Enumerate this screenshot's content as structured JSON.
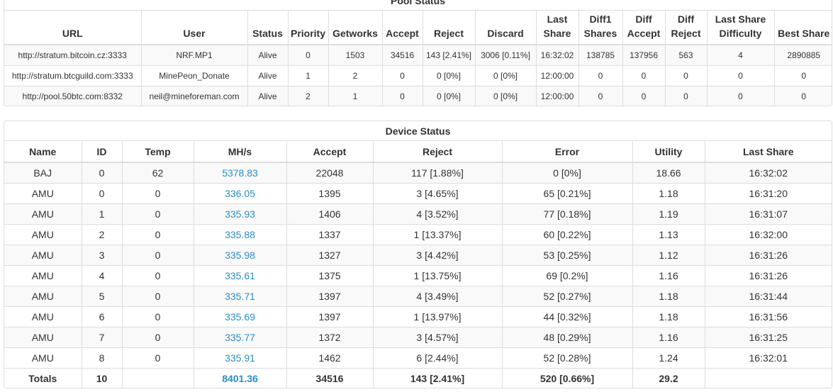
{
  "pool": {
    "title": "Pool Status",
    "headers": [
      "URL",
      "User",
      "Status",
      "Priority",
      "Getworks",
      "Accept",
      "Reject",
      "Discard",
      "Last Share",
      "Diff1 Shares",
      "Diff Accept",
      "Diff Reject",
      "Last Share Difficulty",
      "Best Share"
    ],
    "rows": [
      [
        "http://stratum.bitcoin.cz:3333",
        "NRF.MP1",
        "Alive",
        "0",
        "1503",
        "34516",
        "143 [2.41%]",
        "3006 [0.11%]",
        "16:32:02",
        "138785",
        "137956",
        "563",
        "4",
        "2890885"
      ],
      [
        "http://stratum.btcguild.com:3333",
        "MinePeon_Donate",
        "Alive",
        "1",
        "2",
        "0",
        "0 [0%]",
        "0 [0%]",
        "12:00:00",
        "0",
        "0",
        "0",
        "0",
        "0"
      ],
      [
        "http://pool.50btc.com:8332",
        "neil@mineforeman.com",
        "Alive",
        "2",
        "1",
        "0",
        "0 [0%]",
        "0 [0%]",
        "12:00:00",
        "0",
        "0",
        "0",
        "0",
        "0"
      ]
    ]
  },
  "device": {
    "title": "Device Status",
    "headers": [
      "Name",
      "ID",
      "Temp",
      "MH/s",
      "Accept",
      "Reject",
      "Error",
      "Utility",
      "Last Share"
    ],
    "rows": [
      [
        "BAJ",
        "0",
        "62",
        "5378.83",
        "22048",
        "117 [1.88%]",
        "0 [0%]",
        "18.66",
        "16:32:02"
      ],
      [
        "AMU",
        "0",
        "0",
        "336.05",
        "1395",
        "3 [4.65%]",
        "65 [0.21%]",
        "1.18",
        "16:31:20"
      ],
      [
        "AMU",
        "1",
        "0",
        "335.93",
        "1406",
        "4 [3.52%]",
        "77 [0.18%]",
        "1.19",
        "16:31:07"
      ],
      [
        "AMU",
        "2",
        "0",
        "335.88",
        "1337",
        "1 [13.37%]",
        "60 [0.22%]",
        "1.13",
        "16:32:00"
      ],
      [
        "AMU",
        "3",
        "0",
        "335.98",
        "1327",
        "3 [4.42%]",
        "53 [0.25%]",
        "1.12",
        "16:31:26"
      ],
      [
        "AMU",
        "4",
        "0",
        "335.61",
        "1375",
        "1 [13.75%]",
        "69 [0.2%]",
        "1.16",
        "16:31:26"
      ],
      [
        "AMU",
        "5",
        "0",
        "335.71",
        "1397",
        "4 [3.49%]",
        "52 [0.27%]",
        "1.18",
        "16:31:44"
      ],
      [
        "AMU",
        "6",
        "0",
        "335.69",
        "1397",
        "1 [13.97%]",
        "44 [0.32%]",
        "1.18",
        "16:31:56"
      ],
      [
        "AMU",
        "7",
        "0",
        "335.77",
        "1372",
        "3 [4.57%]",
        "48 [0.29%]",
        "1.16",
        "16:31:25"
      ],
      [
        "AMU",
        "8",
        "0",
        "335.91",
        "1462",
        "6 [2.44%]",
        "52 [0.28%]",
        "1.24",
        "16:32:01"
      ]
    ],
    "totals": [
      "Totals",
      "10",
      "",
      "8401.36",
      "34516",
      "143 [2.41%]",
      "520 [0.66%]",
      "29.2",
      ""
    ]
  },
  "colors": {
    "link": "#2a8cc8",
    "border": "#dddddd",
    "stripe": "#f9f9f9"
  }
}
